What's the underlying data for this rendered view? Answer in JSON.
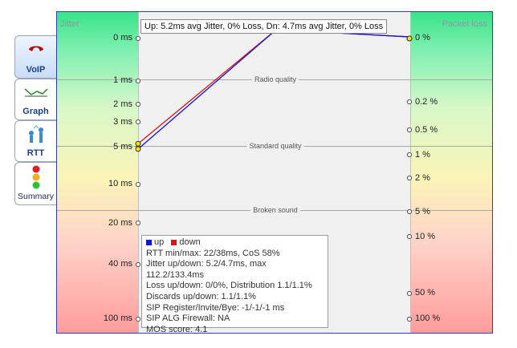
{
  "tabs": [
    {
      "name": "tab-voip",
      "label": "VoIP",
      "icon": "phone-icon",
      "active": true
    },
    {
      "name": "tab-graph",
      "label": "Graph",
      "icon": "graph-icon",
      "active": false
    },
    {
      "name": "tab-rtt",
      "label": "RTT",
      "icon": "rtt-icon",
      "active": false
    },
    {
      "name": "tab-summary",
      "label": "Summary",
      "icon": "traffic-light-icon",
      "active": false
    }
  ],
  "chart": {
    "left_header": "Jitter",
    "right_header": "Packet loss",
    "summary": "Up: 5.2ms avg Jitter, 0% Loss, Dn: 4.7ms avg Jitter, 0% Loss",
    "jitter_ticks": [
      "0 ms",
      "1 ms",
      "2 ms",
      "3 ms",
      "5 ms",
      "10 ms",
      "20 ms",
      "40 ms",
      "100 ms"
    ],
    "loss_ticks": [
      "0 %",
      "0.2 %",
      "0.5 %",
      "1 %",
      "2 %",
      "5 %",
      "10 %",
      "50 %",
      "100 %"
    ],
    "quality_labels": {
      "radio": "Radio quality",
      "standard": "Standard quality",
      "broken": "Broken sound"
    }
  },
  "chart_data": {
    "type": "line",
    "series": [
      {
        "name": "up",
        "color": "#1010e0",
        "jitter_ms": 5.2,
        "loss_pct": 0
      },
      {
        "name": "down",
        "color": "#e01010",
        "jitter_ms": 4.7,
        "loss_pct": 0
      }
    ]
  },
  "info": {
    "legend_up": "up",
    "legend_down": "down",
    "lines": [
      "RTT min/max: 22/38ms, CoS 58%",
      "Jitter up/down: 5.2/4.7ms, max 112.2/133.4ms",
      "Loss up/down: 0/0%, Distribution 1.1/1.1%",
      "Discards up/down: 1.1/1.1%",
      "SIP Register/Invite/Bye: -1/-1/-1 ms",
      "SIP ALG Firewall: NA",
      "MOS score: 4.1"
    ]
  },
  "colors": {
    "up": "#1010e0",
    "down": "#e01010",
    "frame": "#2a3fb0"
  }
}
